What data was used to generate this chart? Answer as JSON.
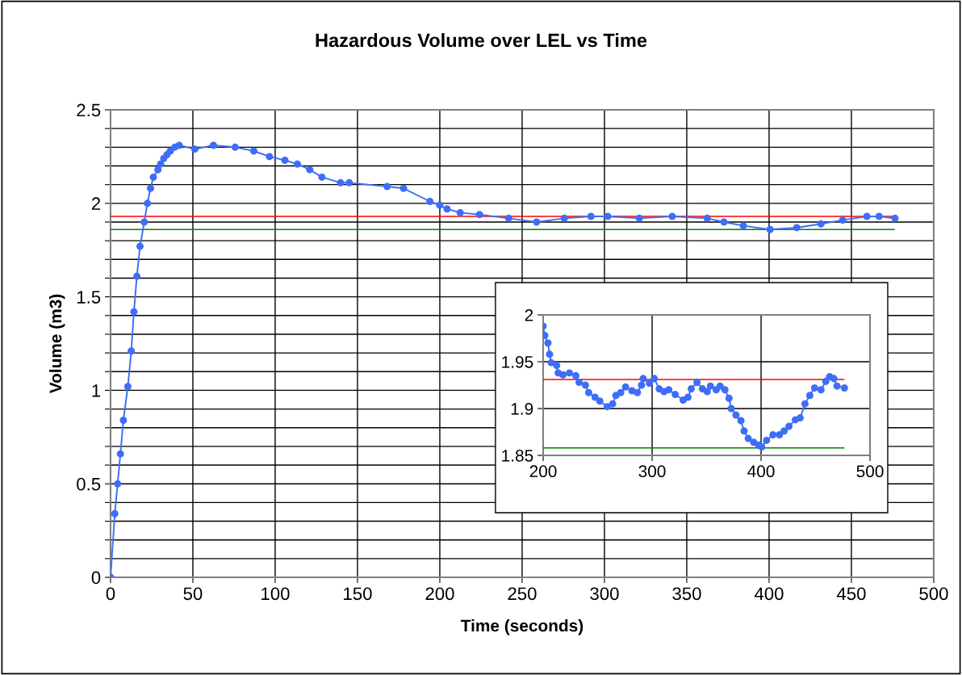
{
  "chart_data": [
    {
      "type": "line",
      "title": "Hazardous Volume over LEL vs Time",
      "xlabel": "Time (seconds)",
      "ylabel": "Volume (m3)",
      "xlim": [
        0,
        500
      ],
      "xticks": [
        0,
        50,
        100,
        150,
        200,
        250,
        300,
        350,
        400,
        450,
        500
      ],
      "ylim": [
        0,
        2.5
      ],
      "yticks": [
        0,
        {
          "value": 0.1,
          "label": null
        },
        {
          "value": 0.2,
          "label": null
        },
        {
          "value": 0.3,
          "label": null
        },
        {
          "value": 0.4,
          "label": null
        },
        0.5,
        {
          "value": 0.6,
          "label": null
        },
        {
          "value": 0.7,
          "label": null
        },
        {
          "value": 0.8,
          "label": null
        },
        {
          "value": 0.9,
          "label": null
        },
        1,
        {
          "value": 1.1,
          "label": null
        },
        {
          "value": 1.2,
          "label": null
        },
        {
          "value": 1.3,
          "label": null
        },
        {
          "value": 1.4,
          "label": null
        },
        1.5,
        {
          "value": 1.6,
          "label": null
        },
        {
          "value": 1.7,
          "label": null
        },
        {
          "value": 1.8,
          "label": null
        },
        {
          "value": 1.9,
          "label": null
        },
        2,
        {
          "value": 2.1,
          "label": null
        },
        {
          "value": 2.2,
          "label": null
        },
        {
          "value": 2.3,
          "label": null
        },
        {
          "value": 2.4,
          "label": null
        },
        2.5
      ],
      "grid": true,
      "series": [
        {
          "color": "#ff0000",
          "marker": "none",
          "x": [
            0,
            476
          ],
          "values": [
            1.93,
            1.93
          ]
        },
        {
          "color": "#008000",
          "marker": "none",
          "x": [
            0,
            476
          ],
          "values": [
            1.86,
            1.86
          ]
        },
        {
          "color": "#3d6ef5",
          "marker": "circle",
          "x": [
            0,
            2.6,
            4.3,
            6.0,
            7.8,
            10.5,
            12.6,
            14.2,
            16,
            17.9,
            20.5,
            22.4,
            24.3,
            26,
            28.8,
            30.4,
            32.3,
            34.3,
            36.3,
            39,
            41.7,
            51.2,
            62.5,
            75.7,
            87,
            96.5,
            105.9,
            113.5,
            121,
            128.4,
            139.7,
            145,
            168,
            178,
            194,
            200,
            204.4,
            212.4,
            224.1,
            241.8,
            258.8,
            275.6,
            291.8,
            302,
            321.2,
            341.2,
            362.4,
            372.6,
            384.4,
            400.6,
            416.8,
            431.5,
            444.7,
            459.4,
            466.8,
            476.5
          ],
          "values": [
            0,
            0.34,
            0.5,
            0.66,
            0.84,
            1.02,
            1.21,
            1.42,
            1.61,
            1.77,
            1.9,
            2.0,
            2.08,
            2.14,
            2.18,
            2.21,
            2.24,
            2.26,
            2.28,
            2.3,
            2.31,
            2.29,
            2.31,
            2.3,
            2.28,
            2.25,
            2.23,
            2.21,
            2.18,
            2.14,
            2.11,
            2.11,
            2.09,
            2.08,
            2.01,
            1.99,
            1.97,
            1.95,
            1.94,
            1.92,
            1.9,
            1.92,
            1.93,
            1.93,
            1.92,
            1.93,
            1.92,
            1.9,
            1.88,
            1.86,
            1.87,
            1.89,
            1.91,
            1.93,
            1.93,
            1.92
          ]
        }
      ]
    },
    {
      "type": "line",
      "xlim": [
        200,
        500
      ],
      "xticks": [
        200,
        300,
        400,
        500
      ],
      "ylim": [
        1.85,
        2
      ],
      "yticks": [
        1.85,
        1.9,
        1.95,
        2
      ],
      "grid": true,
      "series": [
        {
          "color": "#ff0000",
          "marker": "none",
          "x": [
            200,
            476
          ],
          "values": [
            1.931,
            1.931
          ]
        },
        {
          "color": "#008000",
          "marker": "none",
          "x": [
            200,
            476
          ],
          "values": [
            1.858,
            1.858
          ]
        },
        {
          "color": "#3d6ef5",
          "marker": "circle",
          "x": [
            200,
            201.5,
            204.4,
            205.9,
            207.4,
            212.4,
            213.8,
            218.2,
            224.1,
            230,
            233,
            238.8,
            241.8,
            247.6,
            252,
            258.8,
            263.8,
            266.8,
            271.2,
            275.6,
            281.5,
            286.5,
            290.3,
            291.8,
            297.6,
            302,
            306.5,
            310.9,
            315.3,
            321.2,
            328.5,
            332.9,
            335.9,
            341.2,
            346.2,
            350.6,
            353.5,
            358.8,
            362.4,
            366.8,
            370.6,
            372.6,
            377,
            381.5,
            384.4,
            388.2,
            393.2,
            397.6,
            400.6,
            405,
            410.9,
            416.8,
            421.2,
            425.6,
            431.5,
            435.9,
            440.3,
            444.7,
            449.1,
            455,
            459.4,
            462.9,
            466.8,
            469.7,
            476.5
          ],
          "values": [
            1.988,
            1.978,
            1.97,
            1.958,
            1.949,
            1.946,
            1.938,
            1.936,
            1.938,
            1.935,
            1.928,
            1.925,
            1.917,
            1.912,
            1.908,
            1.902,
            1.905,
            1.914,
            1.917,
            1.923,
            1.919,
            1.917,
            1.925,
            1.932,
            1.927,
            1.932,
            1.921,
            1.918,
            1.92,
            1.915,
            1.909,
            1.912,
            1.921,
            1.928,
            1.921,
            1.918,
            1.924,
            1.92,
            1.924,
            1.92,
            1.911,
            1.9,
            1.893,
            1.887,
            1.876,
            1.868,
            1.864,
            1.861,
            1.859,
            1.866,
            1.872,
            1.872,
            1.876,
            1.881,
            1.888,
            1.89,
            1.905,
            1.914,
            1.922,
            1.92,
            1.929,
            1.934,
            1.932,
            1.924,
            1.922
          ]
        }
      ]
    }
  ]
}
